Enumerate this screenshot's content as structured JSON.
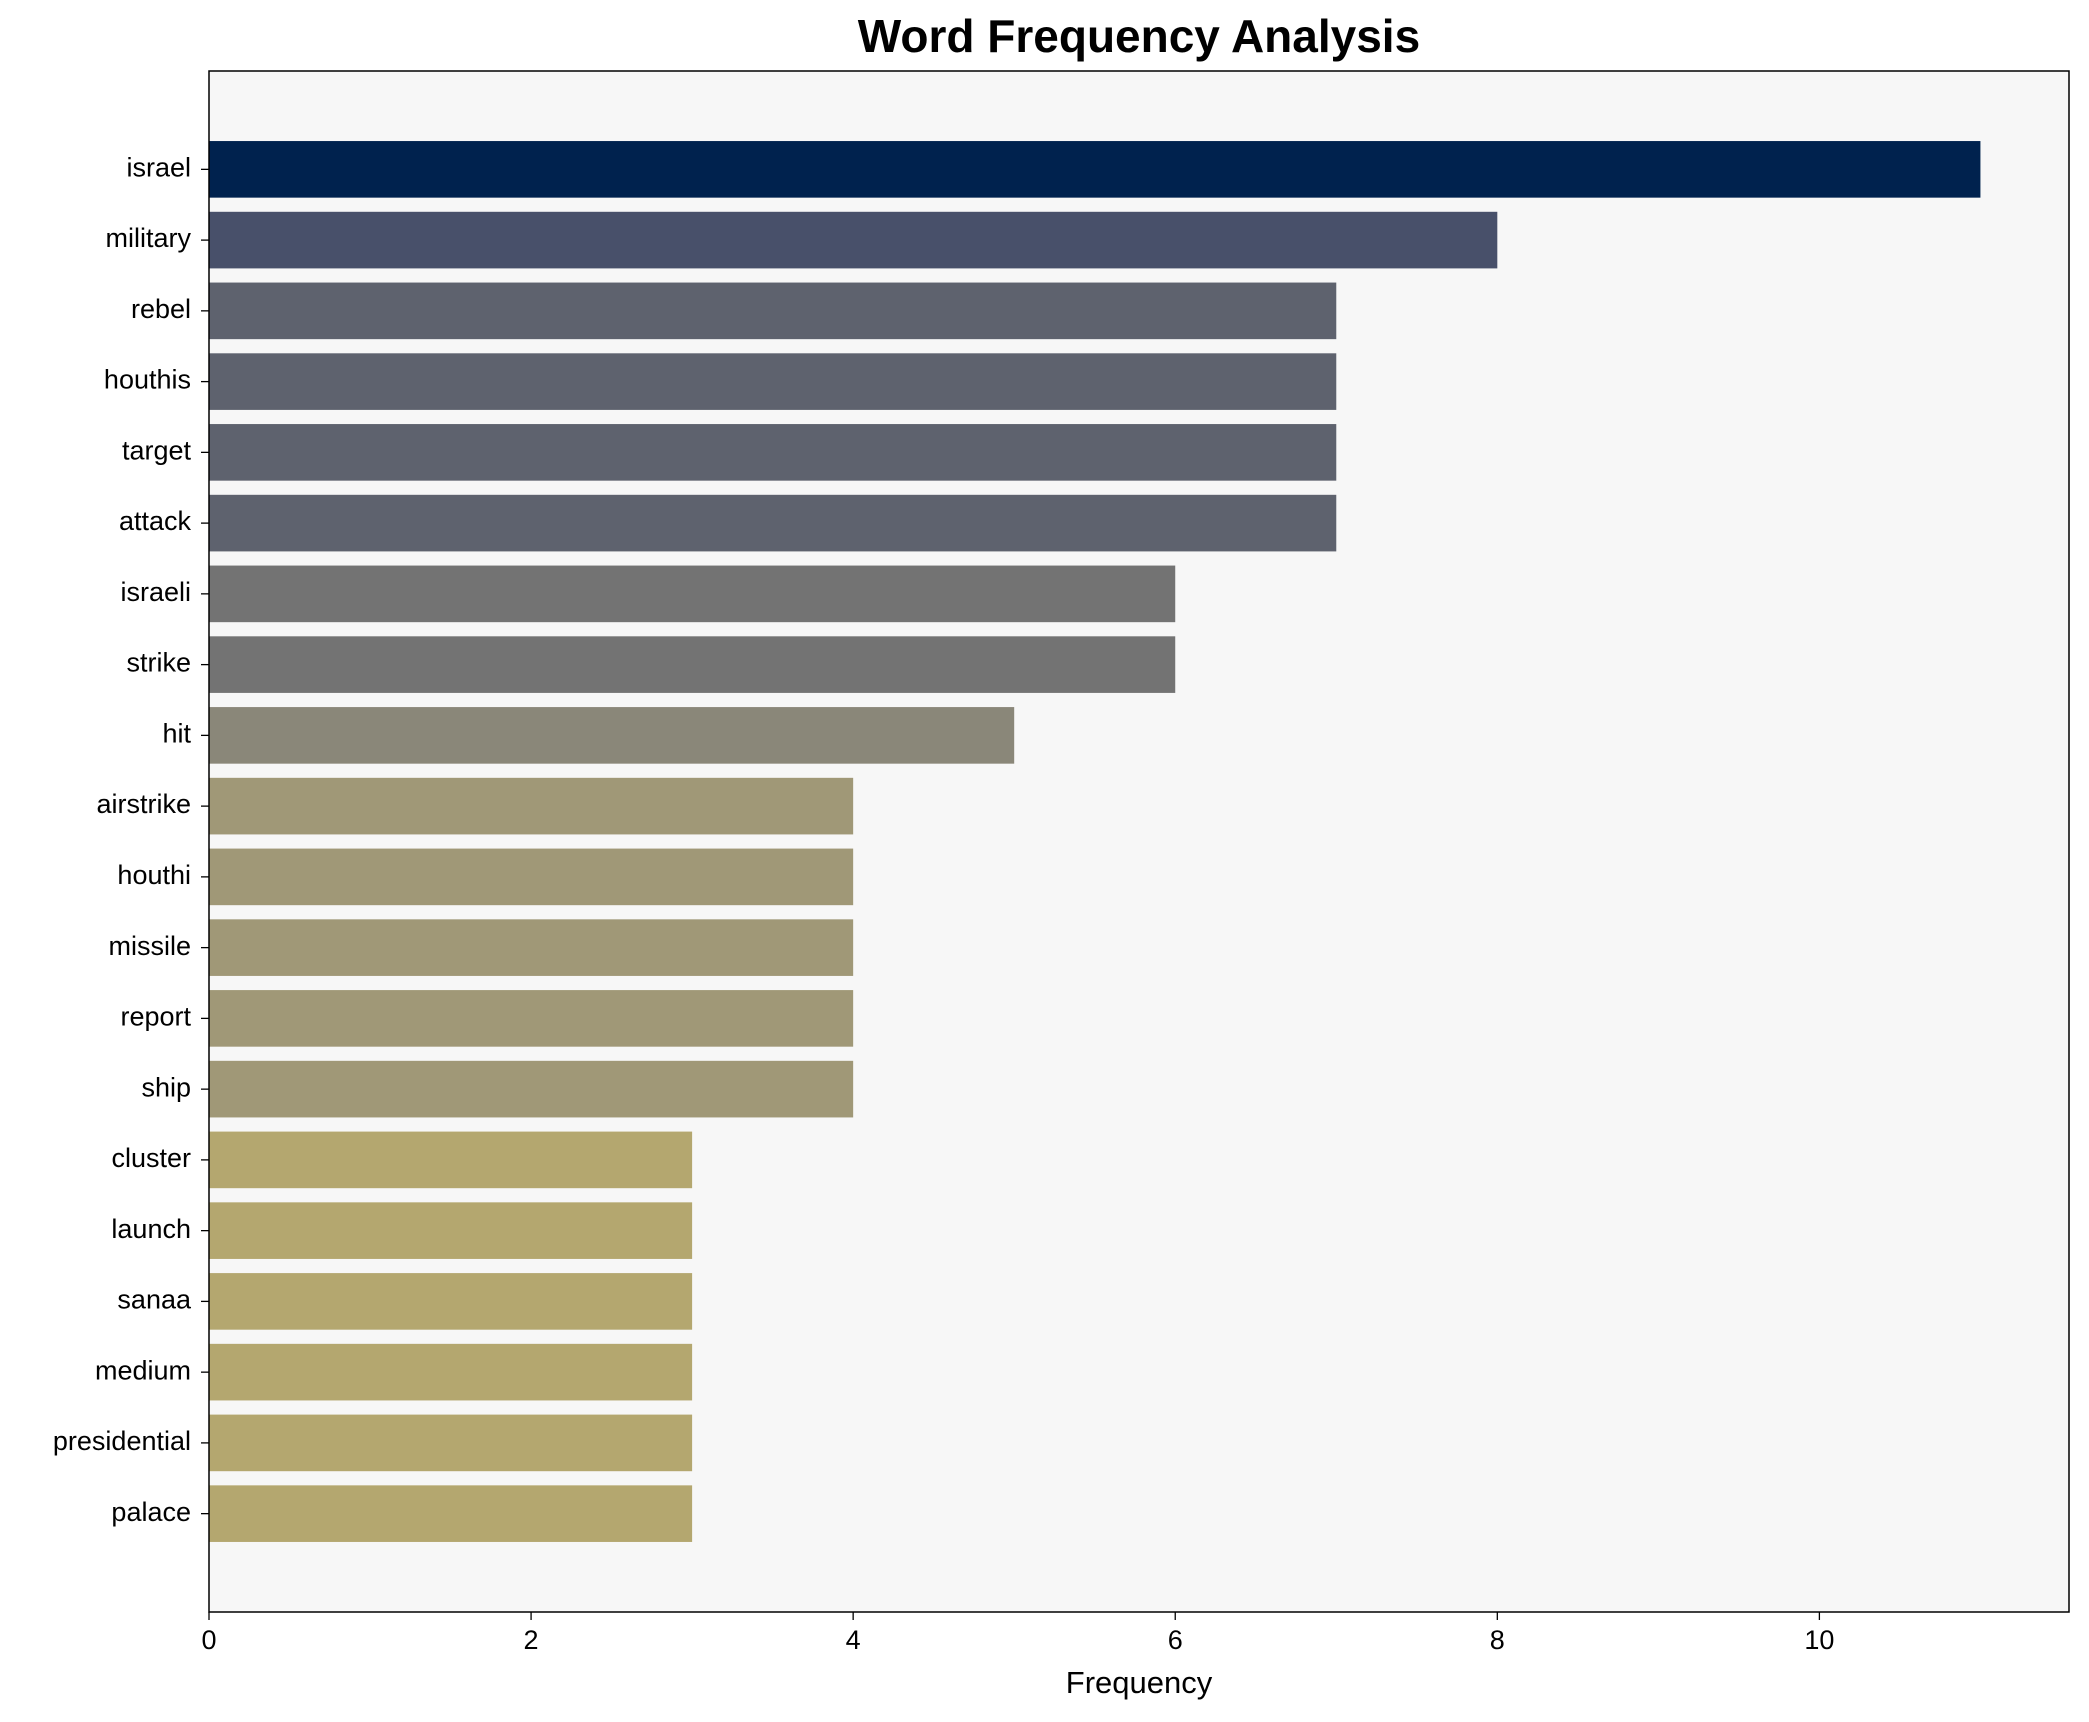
{
  "chart_data": {
    "type": "barh",
    "title": "Word Frequency Analysis",
    "x_label": "Frequency",
    "categories": [
      "israel",
      "military",
      "rebel",
      "houthis",
      "target",
      "attack",
      "israeli",
      "strike",
      "hit",
      "airstrike",
      "houthi",
      "missile",
      "report",
      "ship",
      "cluster",
      "launch",
      "sanaa",
      "medium",
      "presidential",
      "palace"
    ],
    "values": [
      11,
      8,
      7,
      7,
      7,
      7,
      6,
      6,
      5,
      4,
      4,
      4,
      4,
      4,
      3,
      3,
      3,
      3,
      3,
      3
    ],
    "colors": [
      "#00224e",
      "#48506a",
      "#5e626e",
      "#5e626e",
      "#5e626e",
      "#5e626e",
      "#737373",
      "#737373",
      "#8a8779",
      "#a09877",
      "#a09877",
      "#a09877",
      "#a09877",
      "#a09877",
      "#b4a76f",
      "#b4a76f",
      "#b4a76f",
      "#b4a76f",
      "#b4a76f",
      "#b4a76f"
    ],
    "xlim": [
      0,
      11.55
    ],
    "xticks": [
      0,
      2,
      4,
      6,
      8,
      10
    ],
    "background": "#f7f7f7"
  }
}
